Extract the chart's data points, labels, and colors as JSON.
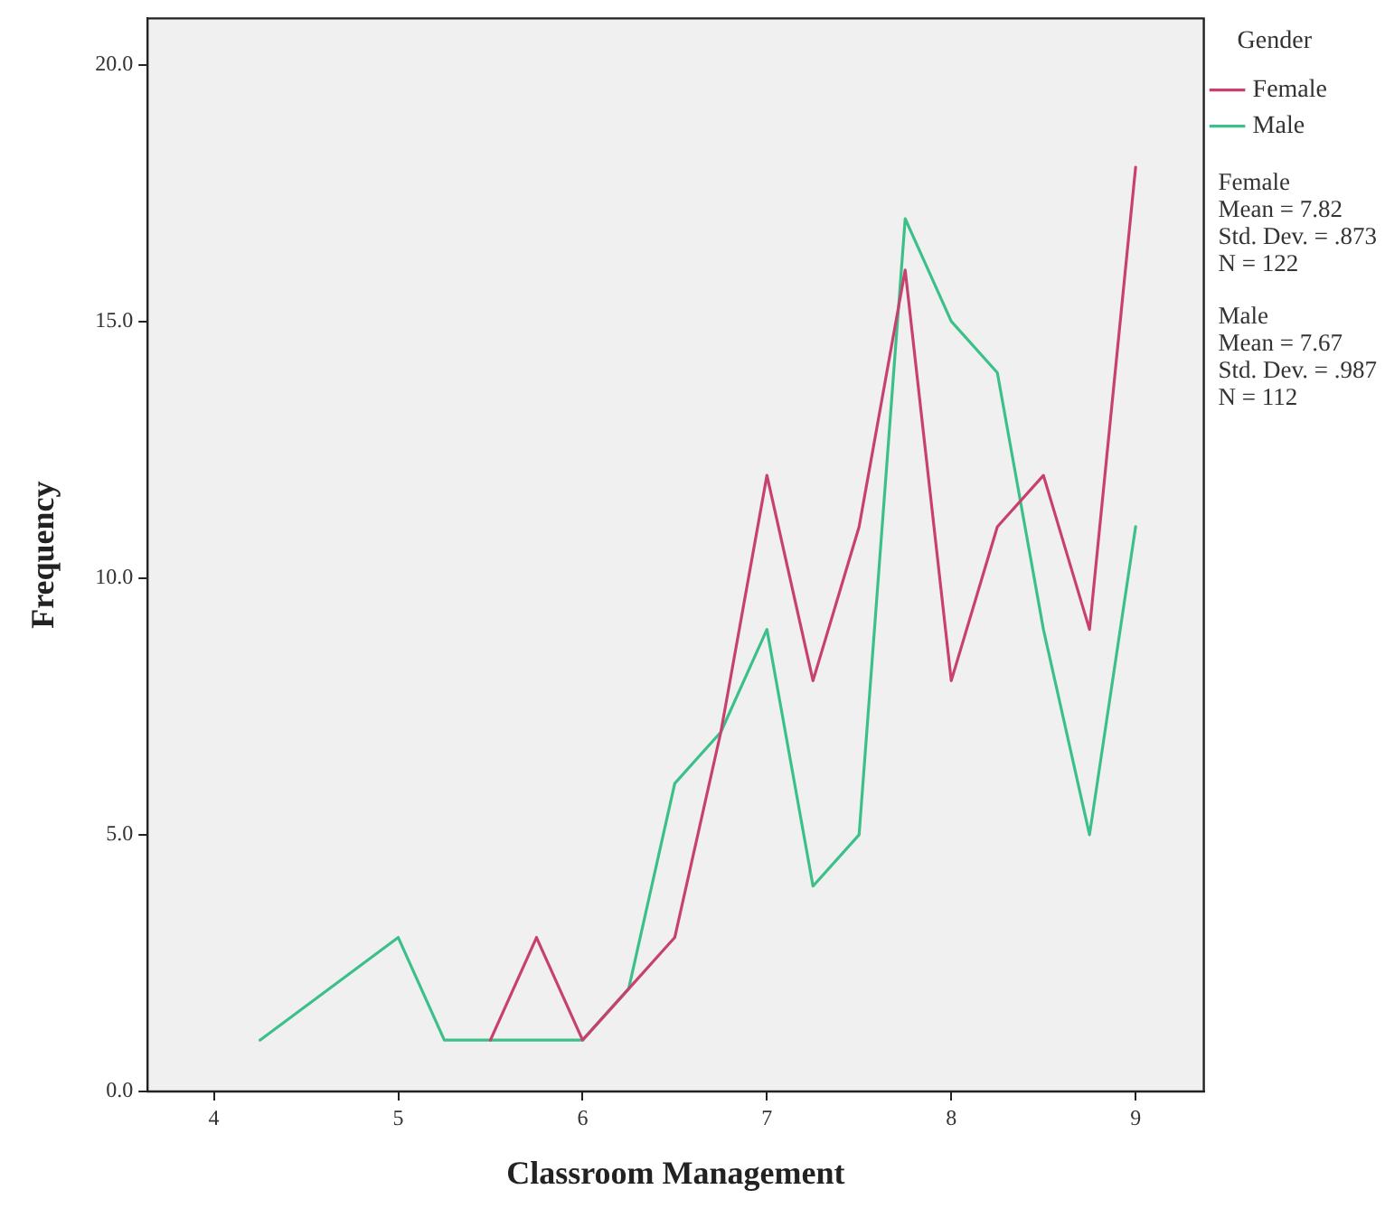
{
  "chart_data": {
    "type": "line",
    "xlabel": "Classroom Management",
    "ylabel": "Frequency",
    "legend_title": "Gender",
    "legend": "top right",
    "grid": false,
    "marker": "none",
    "line_style": "solid",
    "xlim": [
      3.64,
      9.37
    ],
    "xticks": [
      4,
      5,
      6,
      7,
      8,
      9
    ],
    "ylim": [
      0,
      20.9
    ],
    "yticks": [
      {
        "value": 0,
        "label": "0.0"
      },
      {
        "value": 5,
        "label": "5.0"
      },
      {
        "value": 10,
        "label": "10.0"
      },
      {
        "value": 15,
        "label": "15.0"
      },
      {
        "value": 20,
        "label": "20.0"
      }
    ],
    "series": [
      {
        "name": "Female",
        "color": "#c8416e",
        "x": [
          5.5,
          5.75,
          6,
          6.25,
          6.5,
          6.75,
          7,
          7.25,
          7.5,
          7.75,
          8,
          8.25,
          8.5,
          8.75,
          9
        ],
        "values": [
          1,
          3,
          1,
          2,
          3,
          7,
          12,
          8,
          11,
          16,
          8,
          11,
          12,
          9,
          18
        ]
      },
      {
        "name": "Male",
        "color": "#3cc08a",
        "x": [
          4.25,
          5,
          5.25,
          5.5,
          5.75,
          6,
          6.25,
          6.5,
          6.75,
          7,
          7.25,
          7.5,
          7.75,
          8,
          8.25,
          8.5,
          8.75,
          9
        ],
        "values": [
          1,
          3,
          1,
          1,
          1,
          1,
          2,
          6,
          7,
          9,
          4,
          5,
          17,
          15,
          14,
          9,
          5,
          11
        ]
      }
    ],
    "annotations": [
      "Female\nMean = 7.82\nStd. Dev. = .873\nN = 122",
      "Male\nMean = 7.67\nStd. Dev. = .987\nN = 112"
    ]
  }
}
